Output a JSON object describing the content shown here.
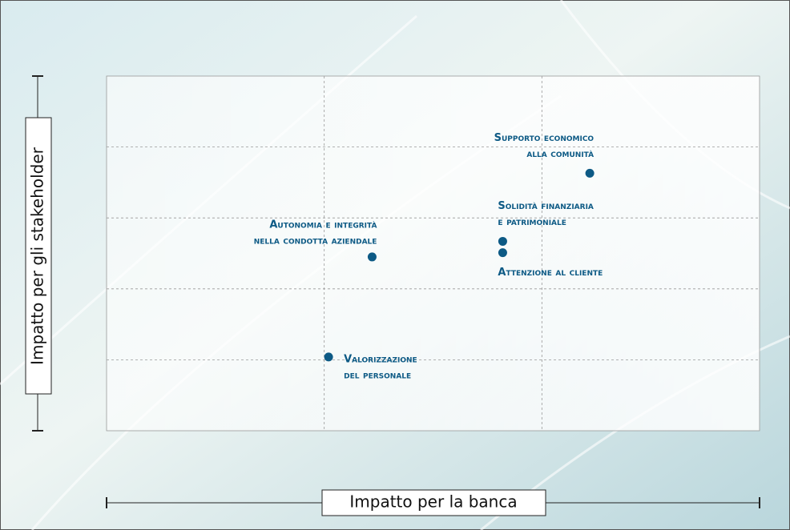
{
  "chart_data": {
    "type": "scatter",
    "xlabel": "Impatto per la banca",
    "ylabel": "Impatto per gli stakeholder",
    "xlim": [
      0,
      3
    ],
    "ylim": [
      0,
      5
    ],
    "xticks": [
      1,
      2
    ],
    "yticks": [
      1,
      2,
      3,
      4
    ],
    "grid": true,
    "color": "#0d5a85",
    "x": [
      2.22,
      1.82,
      1.82,
      1.22,
      1.02
    ],
    "values": [
      3.63,
      2.67,
      2.51,
      2.45,
      1.04
    ],
    "labels": [
      [
        "Supporto economico",
        "alla comunità"
      ],
      [
        "Solidità finanziaria",
        "e patrimoniale"
      ],
      [
        "Attenzione al cliente"
      ],
      [
        "Autonomia e integrità",
        "nella condotta aziendale"
      ],
      [
        "Valorizzazione",
        "del personale"
      ]
    ]
  }
}
